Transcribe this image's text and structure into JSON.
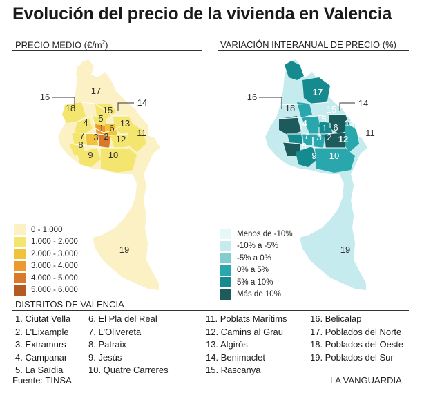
{
  "title": "Evolución del precio de la vivienda en Valencia",
  "left_map": {
    "heading": "PRECIO MEDIO (€/m",
    "heading_sup": "2",
    "heading_end": ")",
    "legend": [
      {
        "label": "0 - 1.000",
        "color": "#fbf1c4"
      },
      {
        "label": "1.000 - 2.000",
        "color": "#f3e56d"
      },
      {
        "label": "2.000 - 3.000",
        "color": "#f1c23b"
      },
      {
        "label": "3.000 - 4.000",
        "color": "#ec9a2e"
      },
      {
        "label": "4.000 - 5.000",
        "color": "#d97a2b"
      },
      {
        "label": "5.000 - 6.000",
        "color": "#b55a20"
      }
    ]
  },
  "right_map": {
    "heading": "VARIACIÓN INTERANUAL DE PRECIO (%)",
    "legend": [
      {
        "label": "Menos de -10%",
        "color": "#e6f7f8"
      },
      {
        "label": "-10% a -5%",
        "color": "#c5ebee"
      },
      {
        "label": "-5% a 0%",
        "color": "#85ccd1"
      },
      {
        "label": "0% a 5%",
        "color": "#2aa6ad"
      },
      {
        "label": "5% a 10%",
        "color": "#168b8f"
      },
      {
        "label": "Más de 10%",
        "color": "#1d5a5b"
      }
    ]
  },
  "map_labels": [
    "1",
    "2",
    "3",
    "4",
    "5",
    "6",
    "7",
    "8",
    "9",
    "10",
    "11",
    "12",
    "13",
    "14",
    "15",
    "16",
    "17",
    "18",
    "19"
  ],
  "districts_heading": "DISTRITOS DE VALENCIA",
  "districts": [
    [
      "1. Ciutat Vella",
      "2. L'Eixample",
      "3. Extramurs",
      "4. Campanar",
      "5. La Saïdia"
    ],
    [
      "6. El Pla del Real",
      "7. L'Olivereta",
      "8. Patraix",
      "9. Jesús",
      "10. Quatre Carreres"
    ],
    [
      "11. Poblats Marítims",
      "12. Camins al Grau",
      "13. Algirós",
      "14. Benimaclet",
      "15. Rascanya"
    ],
    [
      "16. Belicalap",
      "17. Poblados del Norte",
      "18. Poblados del Oeste",
      "19. Poblados del Sur"
    ]
  ],
  "source": "Fuente: TINSA",
  "credit": "LA VANGUARDIA"
}
